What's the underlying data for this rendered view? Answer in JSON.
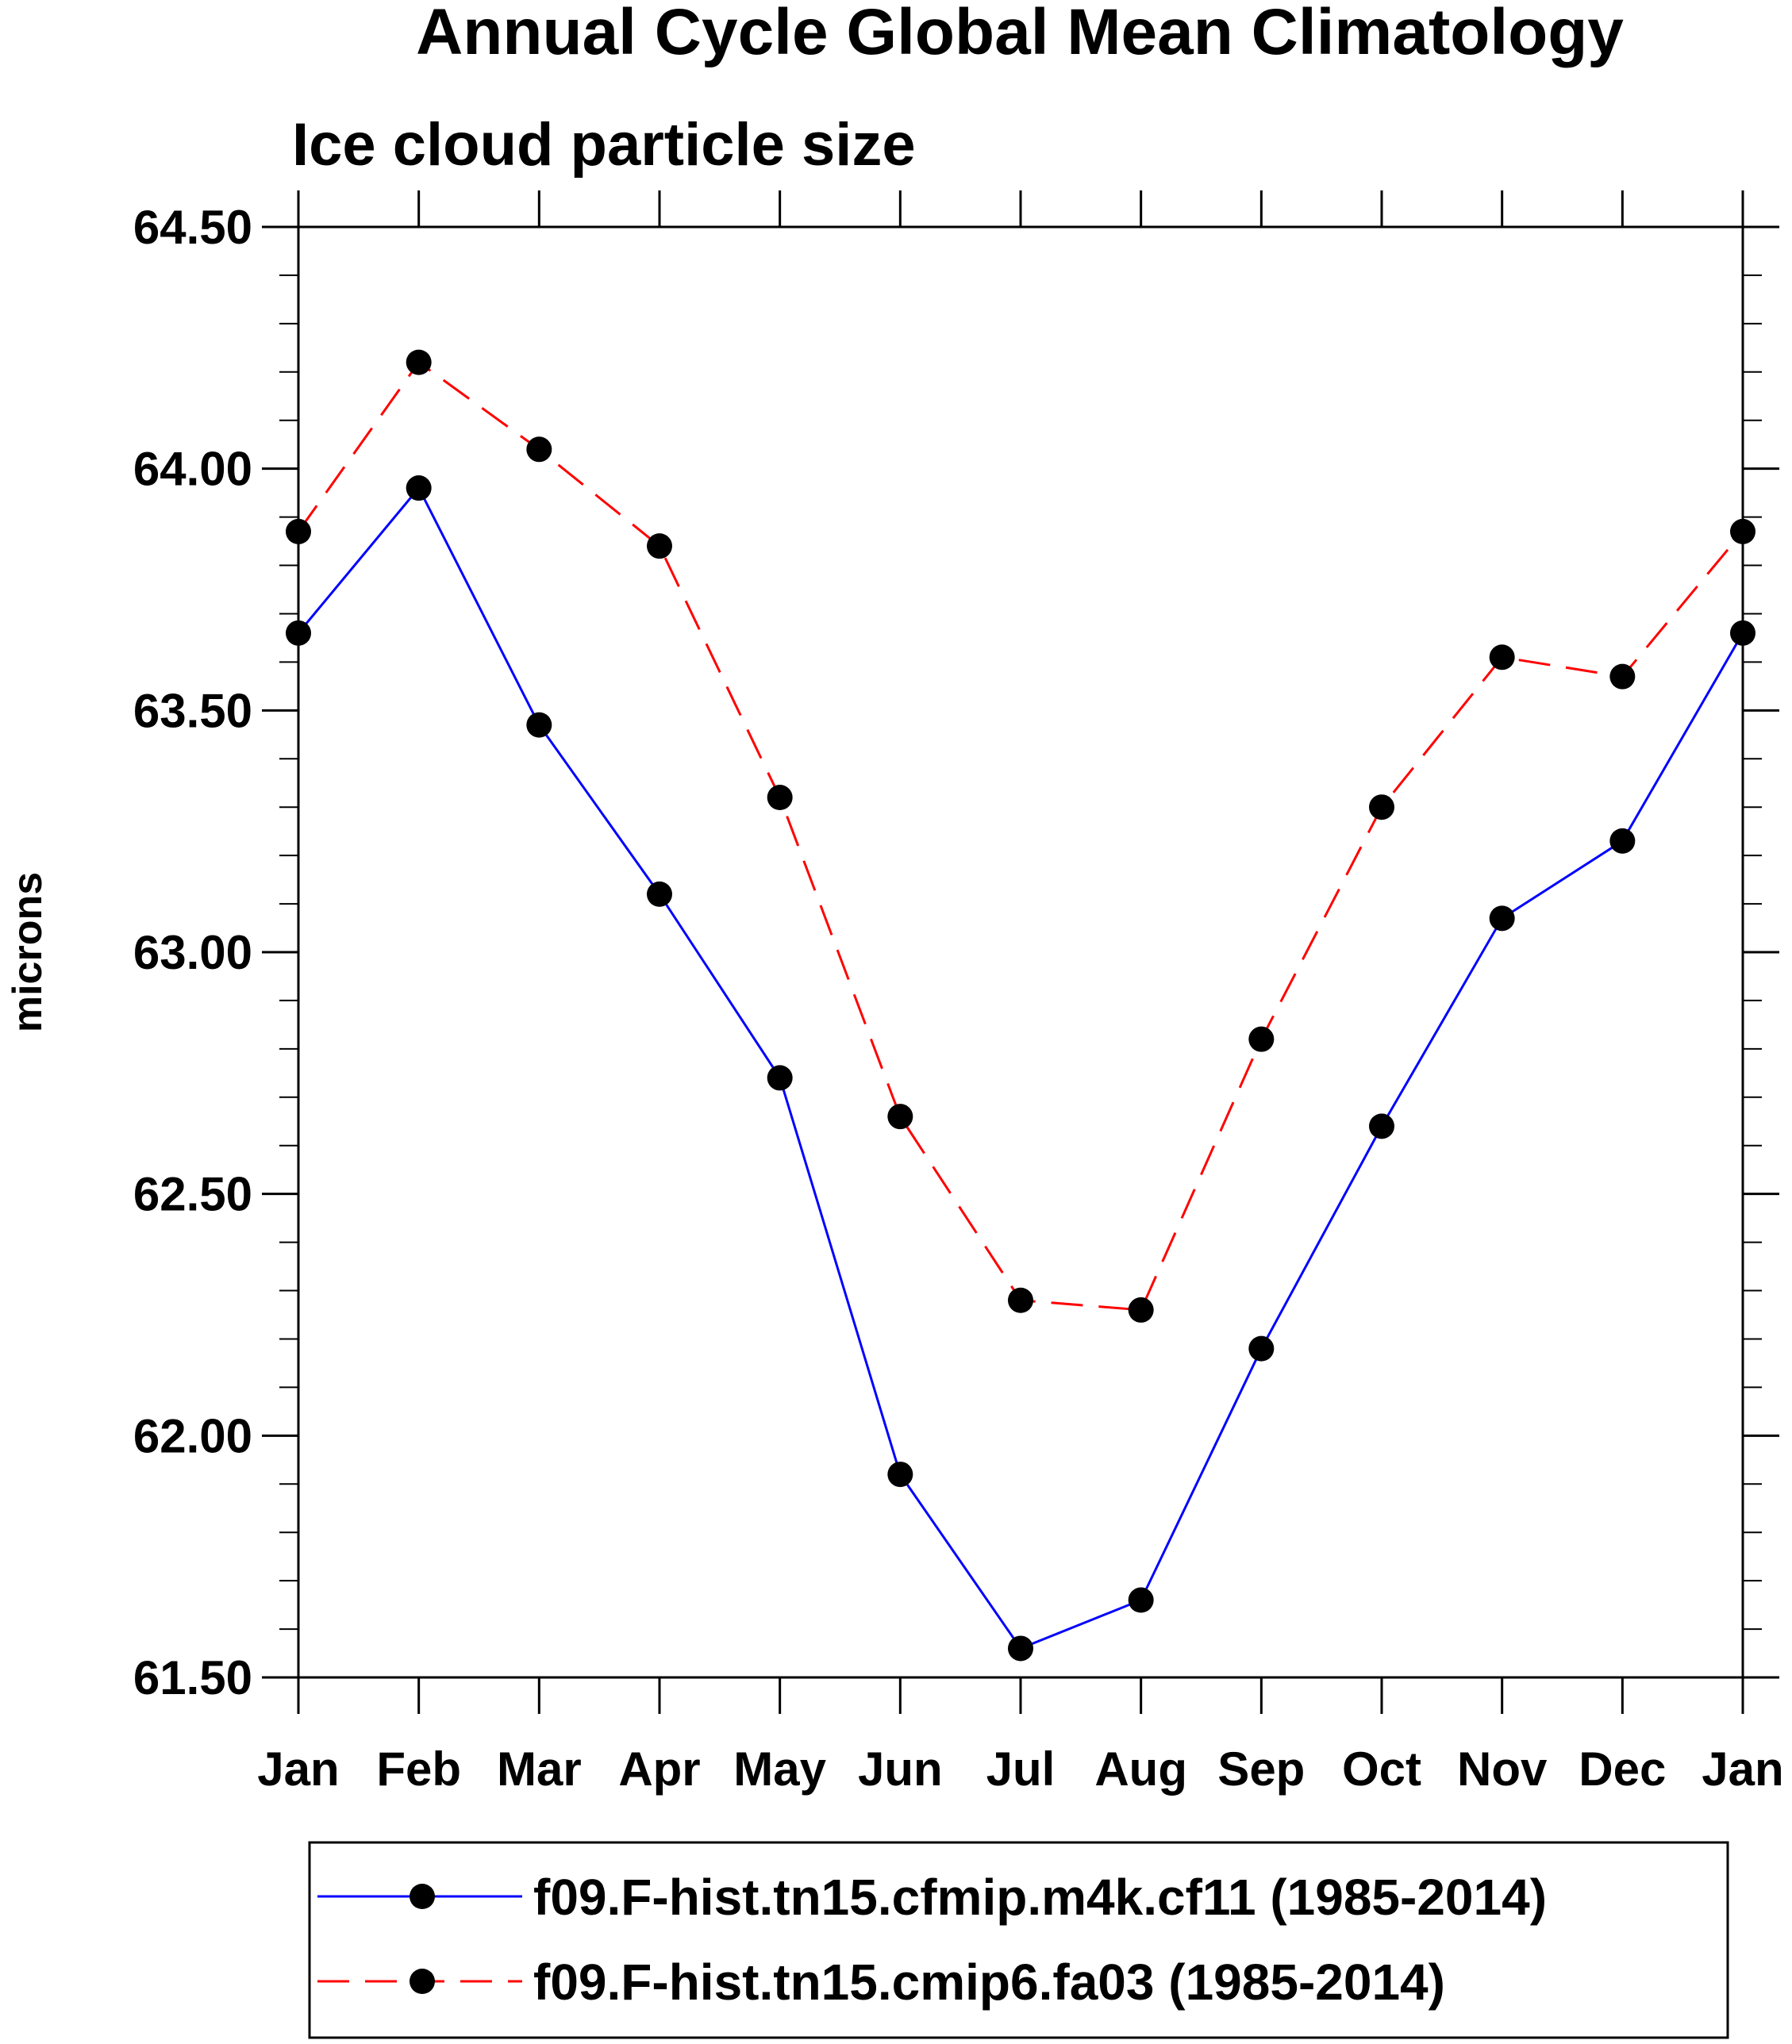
{
  "chart_data": {
    "type": "line",
    "title": "Annual Cycle Global Mean Climatology",
    "subtitle": "Ice cloud particle size",
    "xlabel": "",
    "ylabel": "microns",
    "categories": [
      "Jan",
      "Feb",
      "Mar",
      "Apr",
      "May",
      "Jun",
      "Jul",
      "Aug",
      "Sep",
      "Oct",
      "Nov",
      "Dec",
      "Jan"
    ],
    "ylim": [
      61.5,
      64.5
    ],
    "yticks": [
      61.5,
      62.0,
      62.5,
      63.0,
      63.5,
      64.0,
      64.5
    ],
    "ytick_labels": [
      "61.50",
      "62.00",
      "62.50",
      "63.00",
      "63.50",
      "64.00",
      "64.50"
    ],
    "grid": false,
    "legend_position": "bottom",
    "series": [
      {
        "name": "f09.F-hist.tn15.cfmip.m4k.cf11 (1985-2014)",
        "color": "#0000ff",
        "dash": "solid",
        "values": [
          63.66,
          63.96,
          63.47,
          63.12,
          62.74,
          61.92,
          61.56,
          61.66,
          62.18,
          62.64,
          63.07,
          63.23,
          63.66
        ]
      },
      {
        "name": "f09.F-hist.tn15.cmip6.fa03 (1985-2014)",
        "color": "#ff0000",
        "dash": "dashed",
        "values": [
          63.87,
          64.22,
          64.04,
          63.84,
          63.32,
          62.66,
          62.28,
          62.26,
          62.82,
          63.3,
          63.61,
          63.57,
          63.87
        ]
      }
    ]
  }
}
